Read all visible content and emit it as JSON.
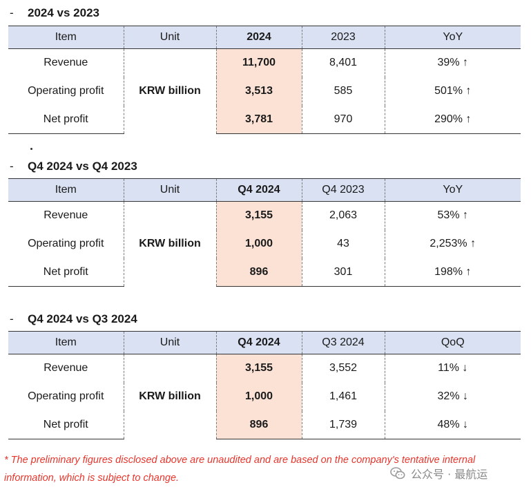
{
  "sections": [
    {
      "title": "2024 vs 2023",
      "headers": [
        "Item",
        "Unit",
        "2024",
        "2023",
        "YoY"
      ],
      "unit": "KRW billion",
      "rows": [
        {
          "item": "Revenue",
          "current": "11,700",
          "previous": "8,401",
          "change": "39% ↑"
        },
        {
          "item": "Operating profit",
          "current": "3,513",
          "previous": "585",
          "change": "501% ↑"
        },
        {
          "item": "Net profit",
          "current": "3,781",
          "previous": "970",
          "change": "290% ↑"
        }
      ]
    },
    {
      "title": "Q4 2024 vs Q4 2023",
      "headers": [
        "Item",
        "Unit",
        "Q4 2024",
        "Q4 2023",
        "YoY"
      ],
      "unit": "KRW billion",
      "rows": [
        {
          "item": "Revenue",
          "current": "3,155",
          "previous": "2,063",
          "change": "53% ↑"
        },
        {
          "item": "Operating profit",
          "current": "1,000",
          "previous": "43",
          "change": "2,253% ↑"
        },
        {
          "item": "Net profit",
          "current": "896",
          "previous": "301",
          "change": "198% ↑"
        }
      ]
    },
    {
      "title": "Q4 2024 vs Q3 2024",
      "headers": [
        "Item",
        "Unit",
        "Q4 2024",
        "Q3 2024",
        "QoQ"
      ],
      "unit": "KRW billion",
      "rows": [
        {
          "item": "Revenue",
          "current": "3,155",
          "previous": "3,552",
          "change": "11% ↓"
        },
        {
          "item": "Operating profit",
          "current": "1,000",
          "previous": "1,461",
          "change": "32% ↓"
        },
        {
          "item": "Net profit",
          "current": "896",
          "previous": "1,739",
          "change": "48% ↓"
        }
      ]
    }
  ],
  "section_dash": "-",
  "footnote": "* The preliminary figures disclosed above are unaudited and are based on the company's tentative internal information, which is subject to change.",
  "watermark": {
    "text": "公众号 · 最航运",
    "icon": "wechat-icon"
  },
  "colors": {
    "header_bg": "#d9e1f2",
    "highlight_bg": "#fbe2d5",
    "footnote": "#e8352c"
  }
}
